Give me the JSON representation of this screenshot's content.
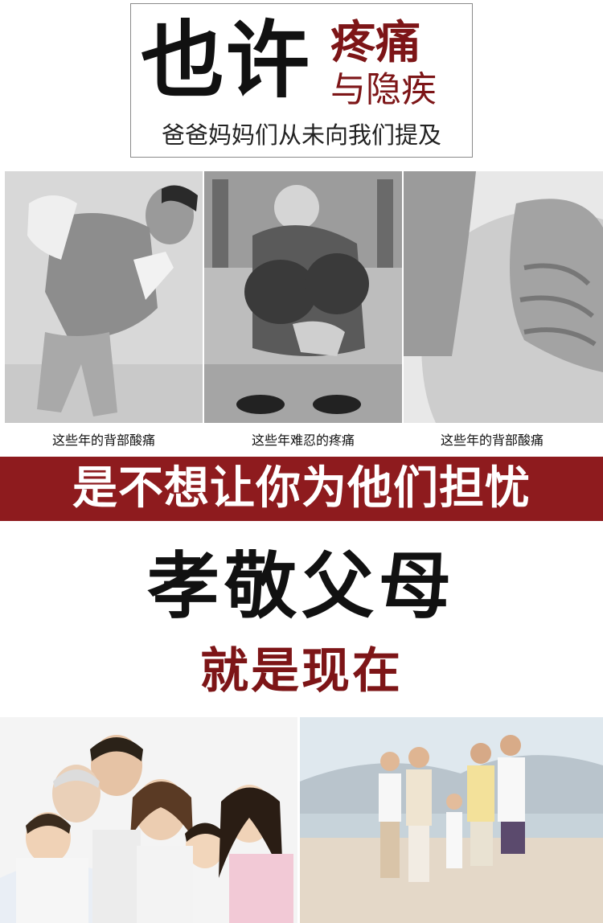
{
  "header": {
    "title_big": "也许",
    "title_red_line1": "疼痛",
    "title_red_line2": "与隐疾",
    "subtitle": "爸爸妈妈们从未向我们提及"
  },
  "photos": [
    {
      "caption": "这些年的背部酸痛"
    },
    {
      "caption": "这些年难忍的疼痛"
    },
    {
      "caption": "这些年的背部酸痛"
    }
  ],
  "banner": {
    "text": "是不想让你为他们担忧"
  },
  "filial": {
    "headline": "孝敬父母",
    "tagline": "就是现在"
  },
  "colors": {
    "accent_red": "#7d1517",
    "banner_red": "#8e1b1e",
    "text_dark": "#111111"
  }
}
